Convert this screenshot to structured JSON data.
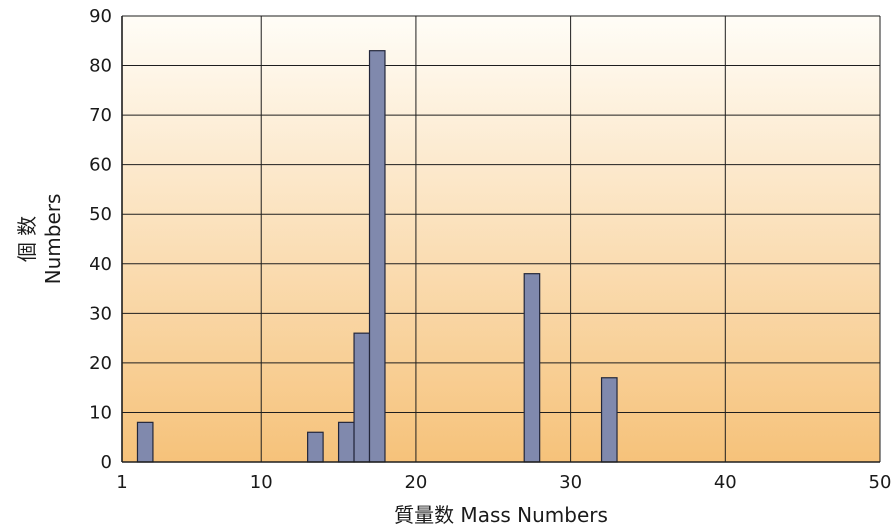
{
  "chart_data": {
    "type": "bar",
    "xlabel": "質量数 Mass Numbers",
    "ylabel": [
      "個 数",
      "Numbers"
    ],
    "xlim": [
      1,
      50
    ],
    "ylim": [
      0,
      90
    ],
    "x_ticks": [
      "1",
      "10",
      "20",
      "30",
      "40",
      "50"
    ],
    "y_ticks": [
      "0",
      "10",
      "20",
      "30",
      "40",
      "50",
      "60",
      "70",
      "80",
      "90"
    ],
    "x_tick_values": [
      1,
      10,
      20,
      30,
      40,
      50
    ],
    "y_tick_values": [
      0,
      10,
      20,
      30,
      40,
      50,
      60,
      70,
      80,
      90
    ],
    "grid": true,
    "bars": [
      {
        "x": 2.5,
        "value": 8
      },
      {
        "x": 13.5,
        "value": 6
      },
      {
        "x": 15.5,
        "value": 8
      },
      {
        "x": 16.5,
        "value": 26
      },
      {
        "x": 17.5,
        "value": 83
      },
      {
        "x": 27.5,
        "value": 38
      },
      {
        "x": 32.5,
        "value": 17
      }
    ],
    "colors": {
      "bar_fill": "#8089ad",
      "bar_stroke": "#22263a",
      "background_top": "#fffdf7",
      "background_bottom": "#f6c27a"
    }
  }
}
